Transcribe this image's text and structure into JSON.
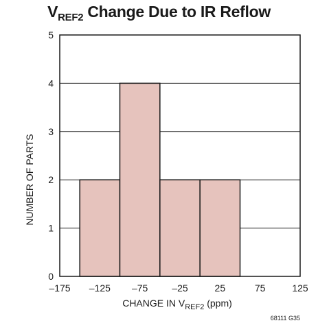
{
  "chart_data": {
    "type": "bar",
    "title_main": "V",
    "title_sub": "REF2",
    "title_rest": " Change Due to IR Reflow",
    "xlabel_main": "CHANGE IN V",
    "xlabel_sub": "REF2",
    "xlabel_rest": " (ppm)",
    "ylabel": "NUMBER OF PARTS",
    "figure_code": "68111 G35",
    "bins": [
      {
        "x0": -150,
        "x1": -100,
        "value": 2
      },
      {
        "x0": -100,
        "x1": -50,
        "value": 4
      },
      {
        "x0": -50,
        "x1": 0,
        "value": 2
      },
      {
        "x0": 0,
        "x1": 50,
        "value": 2
      }
    ],
    "xlim": [
      -175,
      125
    ],
    "ylim": [
      0,
      5
    ],
    "xticks": [
      -175,
      -125,
      -75,
      -25,
      25,
      75,
      125
    ],
    "xtick_labels": [
      "–175",
      "–125",
      "–75",
      "–25",
      "25",
      "75",
      "125"
    ],
    "yticks": [
      0,
      1,
      2,
      3,
      4,
      5
    ],
    "grid": "horizontal",
    "bar_color": "#e6c3bd",
    "bar_edge": "#1a1a1a",
    "grid_color": "#1a1a1a"
  }
}
